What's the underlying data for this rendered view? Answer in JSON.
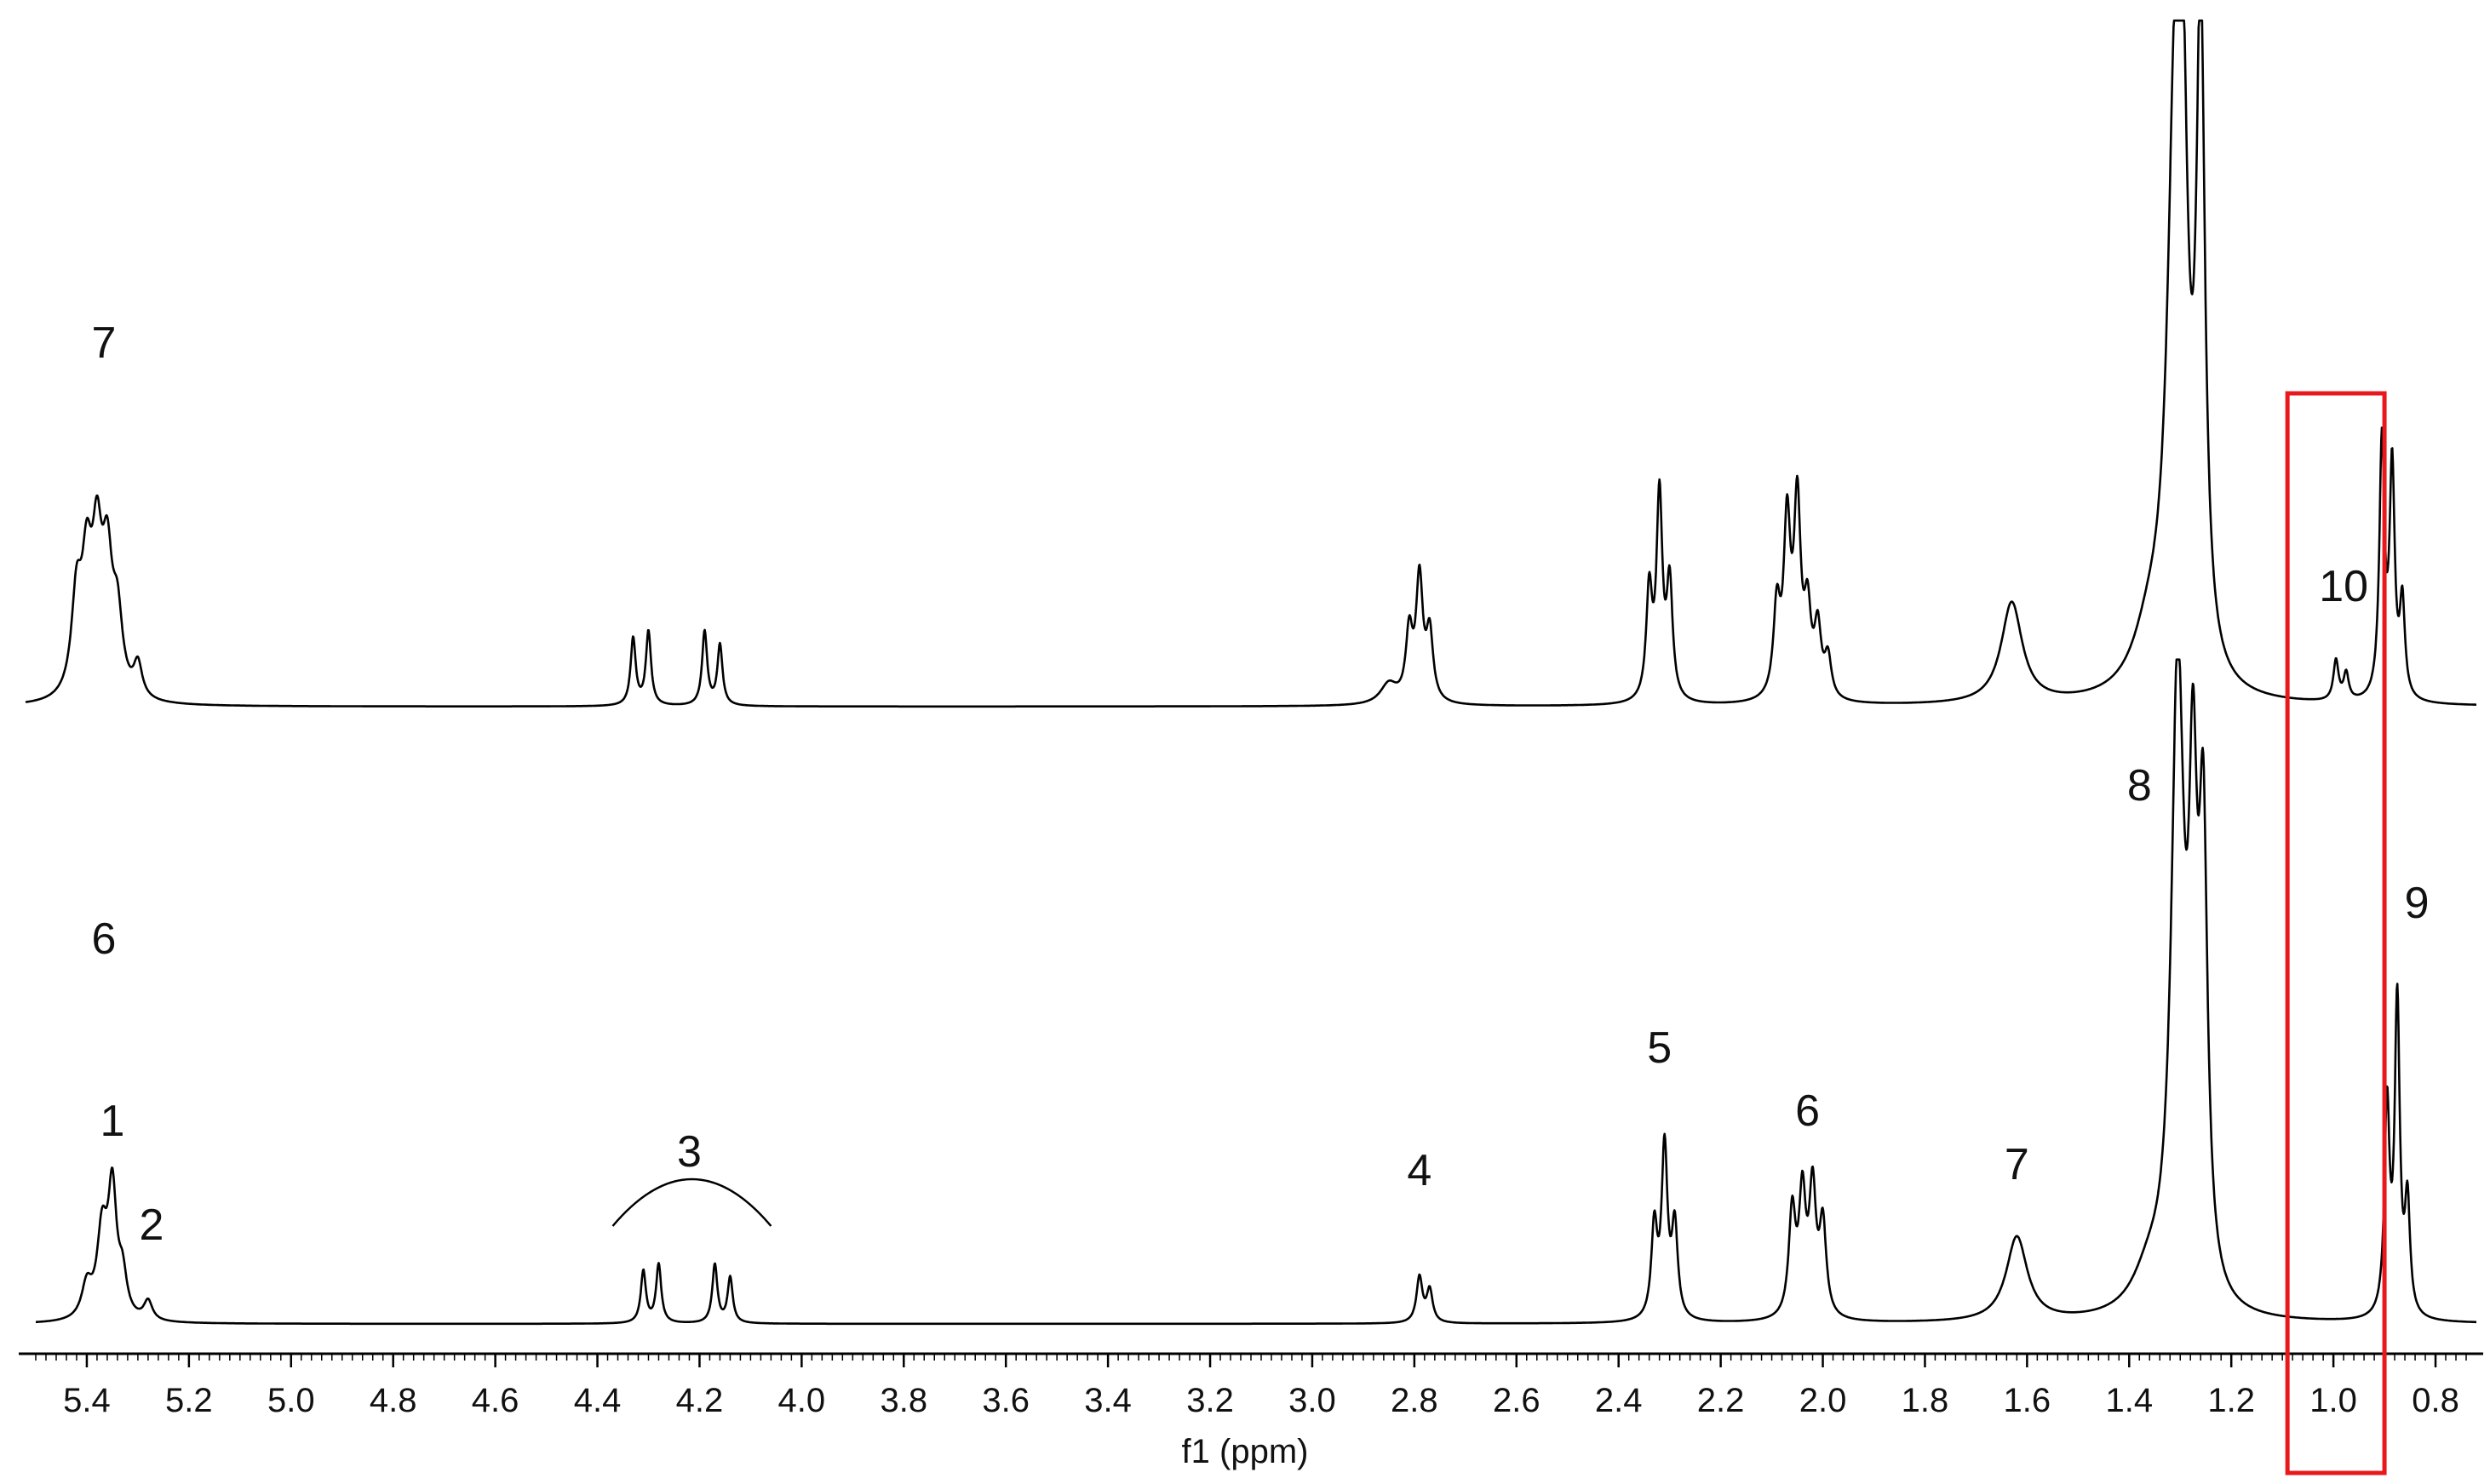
{
  "chart_data": {
    "type": "line",
    "title": "",
    "xlabel": "f1 (ppm)",
    "ylabel": "",
    "x_reversed": true,
    "xlim": [
      5.52,
      0.72
    ],
    "grid": false,
    "x_ticks": [
      "5.4",
      "5.2",
      "5.0",
      "4.8",
      "4.6",
      "4.4",
      "4.2",
      "4.0",
      "3.8",
      "3.6",
      "3.4",
      "3.2",
      "3.0",
      "2.8",
      "2.6",
      "2.4",
      "2.2",
      "2.0",
      "1.8",
      "1.6",
      "1.4",
      "1.2",
      "1.0",
      "0.8"
    ],
    "series": [
      {
        "peaks": [
          {
            "ppm": 5.42,
            "height": 0.14,
            "width": 0.012
          },
          {
            "ppm": 5.4,
            "height": 0.17,
            "width": 0.012
          },
          {
            "ppm": 5.38,
            "height": 0.2,
            "width": 0.012
          },
          {
            "ppm": 5.36,
            "height": 0.18,
            "width": 0.012
          },
          {
            "ppm": 5.34,
            "height": 0.11,
            "width": 0.012
          },
          {
            "ppm": 5.3,
            "height": 0.05,
            "width": 0.01
          },
          {
            "ppm": 4.33,
            "height": 0.1,
            "width": 0.006
          },
          {
            "ppm": 4.3,
            "height": 0.11,
            "width": 0.006
          },
          {
            "ppm": 4.19,
            "height": 0.11,
            "width": 0.006
          },
          {
            "ppm": 4.16,
            "height": 0.09,
            "width": 0.006
          },
          {
            "ppm": 2.81,
            "height": 0.1,
            "width": 0.008
          },
          {
            "ppm": 2.79,
            "height": 0.18,
            "width": 0.008
          },
          {
            "ppm": 2.77,
            "height": 0.1,
            "width": 0.008
          },
          {
            "ppm": 2.85,
            "height": 0.03,
            "width": 0.02
          },
          {
            "ppm": 2.34,
            "height": 0.16,
            "width": 0.007
          },
          {
            "ppm": 2.32,
            "height": 0.3,
            "width": 0.007
          },
          {
            "ppm": 2.3,
            "height": 0.17,
            "width": 0.007
          },
          {
            "ppm": 2.09,
            "height": 0.13,
            "width": 0.008
          },
          {
            "ppm": 2.07,
            "height": 0.25,
            "width": 0.008
          },
          {
            "ppm": 2.05,
            "height": 0.28,
            "width": 0.008
          },
          {
            "ppm": 2.03,
            "height": 0.12,
            "width": 0.008
          },
          {
            "ppm": 2.01,
            "height": 0.1,
            "width": 0.008
          },
          {
            "ppm": 1.99,
            "height": 0.06,
            "width": 0.008
          },
          {
            "ppm": 1.63,
            "height": 0.15,
            "width": 0.025
          },
          {
            "ppm": 1.36,
            "height": 0.08,
            "width": 0.04
          },
          {
            "ppm": 1.31,
            "height": 0.8,
            "width": 0.018
          },
          {
            "ppm": 1.295,
            "height": 0.55,
            "width": 0.012
          },
          {
            "ppm": 1.26,
            "height": 0.95,
            "width": 0.01
          },
          {
            "ppm": 0.995,
            "height": 0.06,
            "width": 0.006
          },
          {
            "ppm": 0.975,
            "height": 0.04,
            "width": 0.006
          },
          {
            "ppm": 0.905,
            "height": 0.38,
            "width": 0.006
          },
          {
            "ppm": 0.885,
            "height": 0.34,
            "width": 0.006
          },
          {
            "ppm": 0.865,
            "height": 0.14,
            "width": 0.006
          }
        ]
      },
      {
        "peaks": [
          {
            "ppm": 5.4,
            "height": 0.05,
            "width": 0.012
          },
          {
            "ppm": 5.37,
            "height": 0.13,
            "width": 0.012
          },
          {
            "ppm": 5.35,
            "height": 0.19,
            "width": 0.01
          },
          {
            "ppm": 5.33,
            "height": 0.06,
            "width": 0.01
          },
          {
            "ppm": 5.28,
            "height": 0.03,
            "width": 0.01
          },
          {
            "ppm": 4.31,
            "height": 0.08,
            "width": 0.006
          },
          {
            "ppm": 4.28,
            "height": 0.09,
            "width": 0.006
          },
          {
            "ppm": 4.17,
            "height": 0.09,
            "width": 0.006
          },
          {
            "ppm": 4.14,
            "height": 0.07,
            "width": 0.006
          },
          {
            "ppm": 2.79,
            "height": 0.07,
            "width": 0.007
          },
          {
            "ppm": 2.77,
            "height": 0.05,
            "width": 0.007
          },
          {
            "ppm": 2.33,
            "height": 0.14,
            "width": 0.007
          },
          {
            "ppm": 2.31,
            "height": 0.26,
            "width": 0.007
          },
          {
            "ppm": 2.29,
            "height": 0.14,
            "width": 0.007
          },
          {
            "ppm": 2.06,
            "height": 0.16,
            "width": 0.008
          },
          {
            "ppm": 2.04,
            "height": 0.18,
            "width": 0.008
          },
          {
            "ppm": 2.02,
            "height": 0.19,
            "width": 0.008
          },
          {
            "ppm": 2.0,
            "height": 0.14,
            "width": 0.008
          },
          {
            "ppm": 1.62,
            "height": 0.13,
            "width": 0.025
          },
          {
            "ppm": 1.36,
            "height": 0.06,
            "width": 0.04
          },
          {
            "ppm": 1.305,
            "height": 0.95,
            "width": 0.015
          },
          {
            "ppm": 1.275,
            "height": 0.65,
            "width": 0.01
          },
          {
            "ppm": 1.255,
            "height": 0.66,
            "width": 0.01
          },
          {
            "ppm": 0.895,
            "height": 0.32,
            "width": 0.006
          },
          {
            "ppm": 0.875,
            "height": 0.48,
            "width": 0.006
          },
          {
            "ppm": 0.855,
            "height": 0.17,
            "width": 0.006
          }
        ]
      }
    ],
    "annotations": [
      {
        "text": "7",
        "series": 0,
        "ppm": 5.36,
        "pos": "upper-left"
      },
      {
        "text": "10",
        "series": 0,
        "ppm": 0.99,
        "pos": "above-peak"
      },
      {
        "text": "6",
        "series": 1,
        "ppm": 5.36,
        "pos": "upper-left"
      },
      {
        "text": "1",
        "series": 1,
        "ppm": 5.35,
        "pos": "above-peak"
      },
      {
        "text": "2",
        "series": 1,
        "ppm": 5.28,
        "pos": "above-peak"
      },
      {
        "text": "3",
        "series": 1,
        "ppm": 4.22,
        "pos": "above-peak-group"
      },
      {
        "text": "4",
        "series": 1,
        "ppm": 2.79,
        "pos": "above-peak"
      },
      {
        "text": "5",
        "series": 1,
        "ppm": 2.32,
        "pos": "above-peak"
      },
      {
        "text": "6",
        "series": 1,
        "ppm": 2.03,
        "pos": "above-peak"
      },
      {
        "text": "7",
        "series": 1,
        "ppm": 1.62,
        "pos": "above-peak"
      },
      {
        "text": "8",
        "series": 1,
        "ppm": 1.38,
        "pos": "above-peak"
      },
      {
        "text": "9",
        "series": 1,
        "ppm": 0.82,
        "pos": "above-peak"
      }
    ],
    "highlight": {
      "from_ppm": 1.09,
      "to_ppm": 0.9,
      "color": "#e8191c"
    }
  }
}
